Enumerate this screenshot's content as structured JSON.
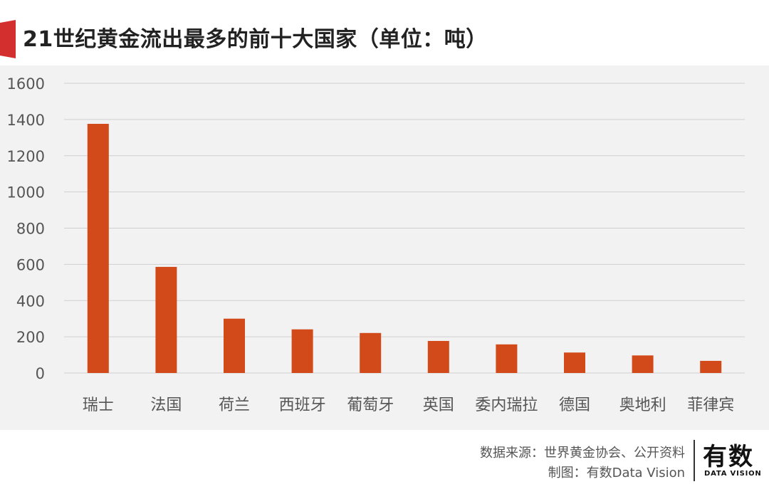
{
  "title": "21世纪黄金流出最多的前十大国家（单位：吨）",
  "colors": {
    "bar": "#d24a1a",
    "accent": "#d32f2f",
    "grid": "#d0d0d0",
    "tick_text": "#555555"
  },
  "chart_data": {
    "type": "bar",
    "categories": [
      "瑞士",
      "法国",
      "荷兰",
      "西班牙",
      "葡萄牙",
      "英国",
      "委内瑞拉",
      "德国",
      "奥地利",
      "菲律宾"
    ],
    "values": [
      1376,
      586,
      300,
      241,
      221,
      177,
      158,
      113,
      97,
      67
    ],
    "ylim": [
      0,
      1600
    ],
    "yticks": [
      0,
      200,
      400,
      600,
      800,
      1000,
      1200,
      1400,
      1600
    ],
    "ytick_labels": [
      "0",
      "200",
      "400",
      "600",
      "800",
      "1000",
      "1200",
      "1400",
      "1600"
    ],
    "grid": true,
    "xlabel": "",
    "ylabel": ""
  },
  "footer": {
    "source": "数据来源：世界黄金协会、公开资料",
    "credit": "制图：有数Data Vision"
  },
  "logo": {
    "main": "有数",
    "sub": "DATA VISION"
  }
}
